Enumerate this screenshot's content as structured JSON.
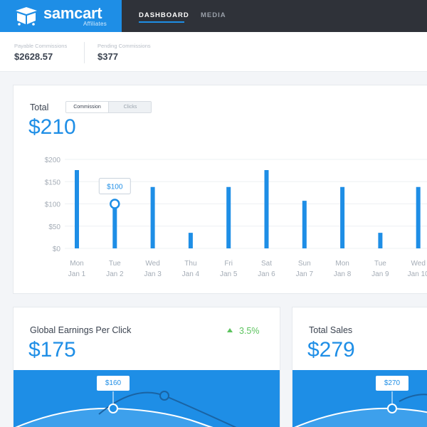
{
  "header": {
    "brand_name": "samcart",
    "brand_sub": "Affiliates",
    "tabs": [
      {
        "label": "DASHBOARD",
        "active": true
      },
      {
        "label": "MEDIA",
        "active": false
      }
    ]
  },
  "summary": {
    "payable_label": "Payable Commissions",
    "payable_value": "$2628.57",
    "pending_label": "Pending Commissions",
    "pending_value": "$377"
  },
  "total_card": {
    "title": "Total",
    "value": "$210",
    "toggle": [
      "Commission",
      "Clicks"
    ],
    "tooltip": "$100"
  },
  "chart_data": {
    "type": "bar",
    "y_ticks": [
      "$200",
      "$150",
      "$100",
      "$50",
      "$0"
    ],
    "ylim": [
      0,
      200
    ],
    "days": [
      "Mon",
      "Tue",
      "Wed",
      "Thu",
      "Fri",
      "Sat",
      "Sun",
      "Mon",
      "Tue",
      "Wed"
    ],
    "dates": [
      "Jan 1",
      "Jan 2",
      "Jan 3",
      "Jan 4",
      "Jan 5",
      "Jan 6",
      "Jan 7",
      "Jan 8",
      "Jan 9",
      "Jan 10"
    ],
    "values": [
      176,
      100,
      138,
      35,
      138,
      176,
      107,
      138,
      35,
      138
    ],
    "highlight_index": 1
  },
  "epc_card": {
    "title": "Global Earnings Per Click",
    "trend": "3.5%",
    "value": "$175",
    "tooltip": "$160"
  },
  "sales_card": {
    "title": "Total Sales",
    "value": "$279",
    "tooltip": "$270"
  },
  "colors": {
    "accent": "#1e8ee6",
    "nav": "#2f3239",
    "positive": "#5cc35e"
  }
}
